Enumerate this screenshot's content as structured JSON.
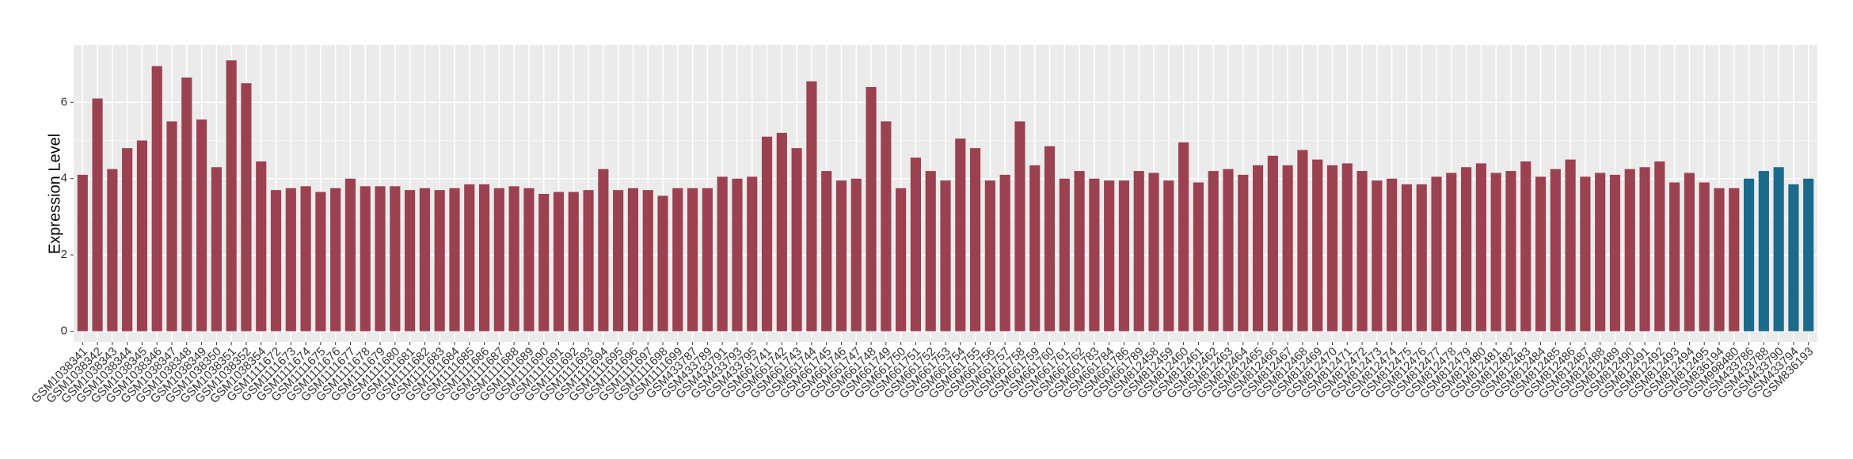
{
  "chart_data": {
    "type": "bar",
    "y_label": "Expression Level",
    "categories": [
      "GSM1038341",
      "GSM1038342",
      "GSM1038343",
      "GSM1038344",
      "GSM1038345",
      "GSM1038346",
      "GSM1038347",
      "GSM1038348",
      "GSM1038349",
      "GSM1038350",
      "GSM1038351",
      "GSM1038352",
      "GSM1038354",
      "GSM1111672",
      "GSM1111673",
      "GSM1111674",
      "GSM1111675",
      "GSM1111676",
      "GSM1111677",
      "GSM1111678",
      "GSM1111679",
      "GSM1111680",
      "GSM1111681",
      "GSM1111682",
      "GSM1111683",
      "GSM1111684",
      "GSM1111685",
      "GSM1111686",
      "GSM1111687",
      "GSM1111688",
      "GSM1111689",
      "GSM1111690",
      "GSM1111691",
      "GSM1111692",
      "GSM1111693",
      "GSM1111694",
      "GSM1111695",
      "GSM1111696",
      "GSM1111697",
      "GSM1111698",
      "GSM1111699",
      "GSM433787",
      "GSM433789",
      "GSM433791",
      "GSM433793",
      "GSM433795",
      "GSM661741",
      "GSM661742",
      "GSM661743",
      "GSM661744",
      "GSM661745",
      "GSM661746",
      "GSM661747",
      "GSM661748",
      "GSM661749",
      "GSM661750",
      "GSM661751",
      "GSM661752",
      "GSM661753",
      "GSM661754",
      "GSM661755",
      "GSM661756",
      "GSM661757",
      "GSM661758",
      "GSM661759",
      "GSM661760",
      "GSM661761",
      "GSM661762",
      "GSM661783",
      "GSM661784",
      "GSM661786",
      "GSM661789",
      "GSM812458",
      "GSM812459",
      "GSM812460",
      "GSM812461",
      "GSM812462",
      "GSM812463",
      "GSM812464",
      "GSM812465",
      "GSM812466",
      "GSM812467",
      "GSM812468",
      "GSM812469",
      "GSM812470",
      "GSM812471",
      "GSM812472",
      "GSM812473",
      "GSM812474",
      "GSM812475",
      "GSM812476",
      "GSM812477",
      "GSM812478",
      "GSM812479",
      "GSM812480",
      "GSM812481",
      "GSM812482",
      "GSM812483",
      "GSM812484",
      "GSM812485",
      "GSM812486",
      "GSM812487",
      "GSM812488",
      "GSM812489",
      "GSM812490",
      "GSM812491",
      "GSM812492",
      "GSM812493",
      "GSM812494",
      "GSM812495",
      "GSM836194",
      "GSM998480",
      "GSM433786",
      "GSM433788",
      "GSM433790",
      "GSM433794",
      "GSM836193"
    ],
    "values": [
      4.1,
      6.1,
      4.25,
      4.8,
      5.0,
      6.95,
      5.5,
      6.65,
      5.55,
      4.3,
      7.1,
      6.5,
      4.45,
      3.7,
      3.75,
      3.8,
      3.65,
      3.75,
      4.0,
      3.8,
      3.8,
      3.8,
      3.7,
      3.75,
      3.7,
      3.75,
      3.85,
      3.85,
      3.75,
      3.8,
      3.75,
      3.6,
      3.65,
      3.65,
      3.7,
      4.25,
      3.7,
      3.75,
      3.7,
      3.55,
      3.75,
      3.75,
      3.75,
      4.05,
      4.0,
      4.05,
      5.1,
      5.2,
      4.8,
      6.55,
      4.2,
      3.95,
      4.0,
      6.4,
      5.5,
      3.75,
      4.55,
      4.2,
      3.95,
      5.05,
      4.8,
      3.95,
      4.1,
      5.5,
      4.35,
      4.85,
      4.0,
      4.2,
      4.0,
      3.95,
      3.95,
      4.2,
      4.15,
      3.95,
      4.95,
      3.9,
      4.2,
      4.25,
      4.1,
      4.35,
      4.6,
      4.35,
      4.75,
      4.5,
      4.35,
      4.4,
      4.2,
      3.95,
      4.0,
      3.85,
      3.85,
      4.05,
      4.15,
      4.3,
      4.4,
      4.15,
      4.2,
      4.45,
      4.05,
      4.25,
      4.5,
      4.05,
      4.15,
      4.1,
      4.25,
      4.3,
      4.45,
      3.9,
      4.15,
      3.9,
      3.75,
      3.75,
      4.0,
      4.2,
      4.3,
      3.85,
      4.0
    ],
    "colors": [
      "#9b4150",
      "#9b4150",
      "#9b4150",
      "#9b4150",
      "#9b4150",
      "#9b4150",
      "#9b4150",
      "#9b4150",
      "#9b4150",
      "#9b4150",
      "#9b4150",
      "#9b4150",
      "#9b4150",
      "#9b4150",
      "#9b4150",
      "#9b4150",
      "#9b4150",
      "#9b4150",
      "#9b4150",
      "#9b4150",
      "#9b4150",
      "#9b4150",
      "#9b4150",
      "#9b4150",
      "#9b4150",
      "#9b4150",
      "#9b4150",
      "#9b4150",
      "#9b4150",
      "#9b4150",
      "#9b4150",
      "#9b4150",
      "#9b4150",
      "#9b4150",
      "#9b4150",
      "#9b4150",
      "#9b4150",
      "#9b4150",
      "#9b4150",
      "#9b4150",
      "#9b4150",
      "#9b4150",
      "#9b4150",
      "#9b4150",
      "#9b4150",
      "#9b4150",
      "#9b4150",
      "#9b4150",
      "#9b4150",
      "#9b4150",
      "#9b4150",
      "#9b4150",
      "#9b4150",
      "#9b4150",
      "#9b4150",
      "#9b4150",
      "#9b4150",
      "#9b4150",
      "#9b4150",
      "#9b4150",
      "#9b4150",
      "#9b4150",
      "#9b4150",
      "#9b4150",
      "#9b4150",
      "#9b4150",
      "#9b4150",
      "#9b4150",
      "#9b4150",
      "#9b4150",
      "#9b4150",
      "#9b4150",
      "#9b4150",
      "#9b4150",
      "#9b4150",
      "#9b4150",
      "#9b4150",
      "#9b4150",
      "#9b4150",
      "#9b4150",
      "#9b4150",
      "#9b4150",
      "#9b4150",
      "#9b4150",
      "#9b4150",
      "#9b4150",
      "#9b4150",
      "#9b4150",
      "#9b4150",
      "#9b4150",
      "#9b4150",
      "#9b4150",
      "#9b4150",
      "#9b4150",
      "#9b4150",
      "#9b4150",
      "#9b4150",
      "#9b4150",
      "#9b4150",
      "#9b4150",
      "#9b4150",
      "#9b4150",
      "#9b4150",
      "#9b4150",
      "#9b4150",
      "#9b4150",
      "#9b4150",
      "#9b4150",
      "#9b4150",
      "#9b4150",
      "#9b4150",
      "#9b4150",
      "#1a6a8c",
      "#1a6a8c",
      "#1a6a8c",
      "#1a6a8c",
      "#1a6a8c"
    ],
    "ylim": [
      -0.28,
      7.5
    ],
    "yticks": [
      0,
      2,
      4,
      6
    ],
    "grid": true
  }
}
